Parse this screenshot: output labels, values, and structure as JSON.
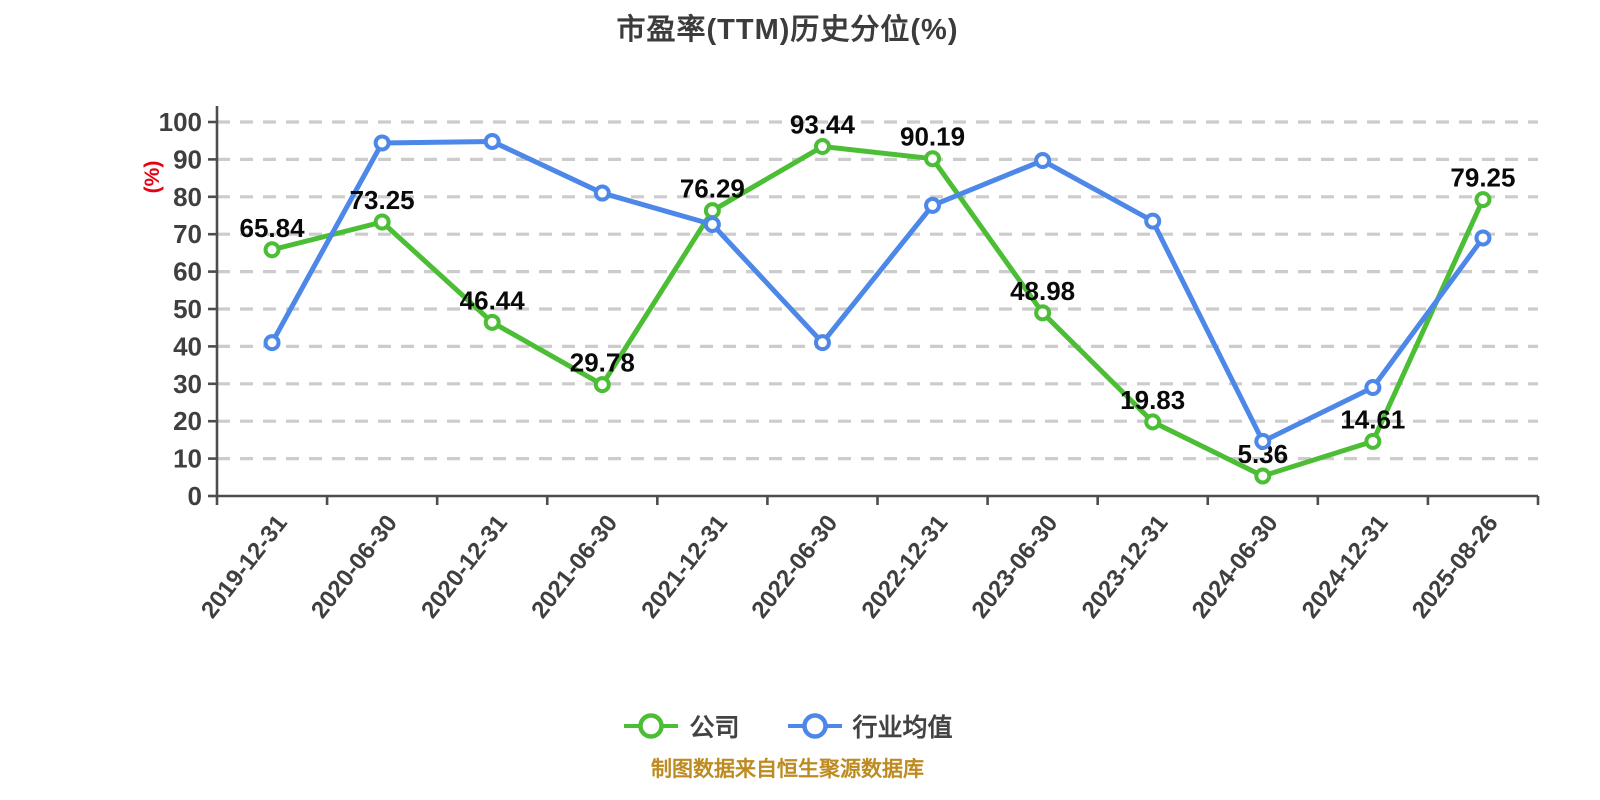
{
  "page": {
    "background": "#ffffff"
  },
  "chart_data": {
    "type": "line",
    "title": "市盈率(TTM)历史分位(%)",
    "y_axis_name": "(%)",
    "y_axis_name_color": "#e60012",
    "ylim": [
      0,
      100
    ],
    "y_tick_interval": 10,
    "y_ticks": [
      0,
      10,
      20,
      30,
      40,
      50,
      60,
      70,
      80,
      90,
      100
    ],
    "grid": "horizontal-dashed",
    "legend_position": "bottom",
    "categories": [
      "2019-12-31",
      "2020-06-30",
      "2020-12-31",
      "2021-06-30",
      "2021-12-31",
      "2022-06-30",
      "2022-12-31",
      "2023-06-30",
      "2023-12-31",
      "2024-06-30",
      "2024-12-31",
      "2025-08-26"
    ],
    "series": [
      {
        "key": "company",
        "name": "公司",
        "color": "#4cbe35",
        "point_fill": "#ffffff",
        "labels_visible": true,
        "values": [
          65.84,
          73.25,
          46.44,
          29.78,
          76.29,
          93.44,
          90.19,
          48.98,
          19.83,
          5.36,
          14.61,
          79.25
        ]
      },
      {
        "key": "industry-average",
        "name": "行业均值",
        "color": "#4d87e8",
        "point_fill": "#ffffff",
        "labels_visible": false,
        "values": [
          41.0,
          94.4,
          94.8,
          81.0,
          72.6,
          41.0,
          77.7,
          89.7,
          73.5,
          14.6,
          29.0,
          69.0
        ]
      }
    ],
    "footer": "制图数据来自恒生聚源数据库"
  }
}
